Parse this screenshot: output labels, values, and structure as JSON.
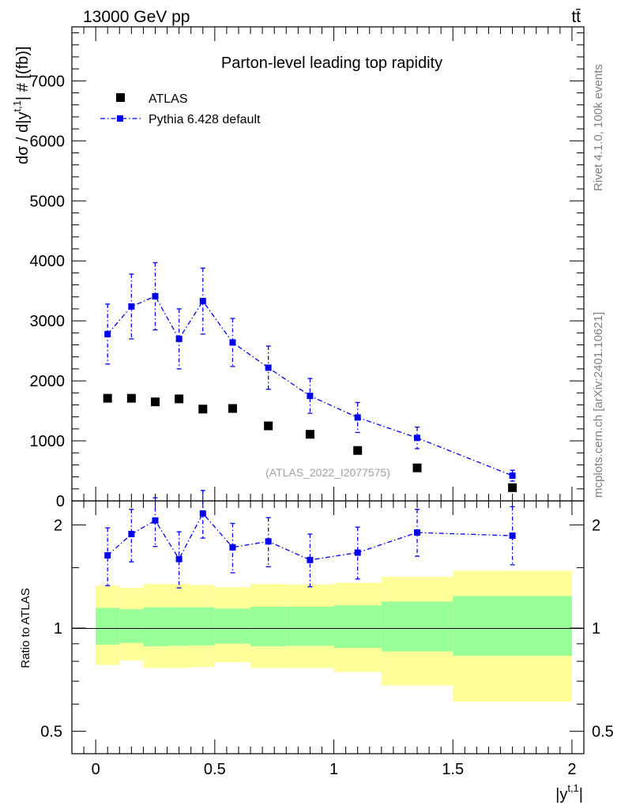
{
  "header": {
    "left": "13000 GeV pp",
    "right": "tt̄"
  },
  "side_labels": {
    "rivet": "Rivet 4.1.0,  100k events",
    "mcplots": "mcplots.cern.ch [arXiv:2401.10621]"
  },
  "chart_data": [
    {
      "type": "scatter",
      "title": "Parton-level leading top rapidity",
      "ylabel": "dσ / d|y",
      "ylabel_sup": "t,1",
      "ylabel_tail": "| # [(fb)]",
      "xlabel": "|y",
      "xlabel_sup": "t,1",
      "xlabel_tail": "|",
      "xlim": [
        -0.1,
        2.05
      ],
      "ylim": [
        0,
        7900
      ],
      "yticks": [
        0,
        1000,
        2000,
        3000,
        4000,
        5000,
        6000,
        7000
      ],
      "ytick_labels": [
        "0",
        "1000",
        "2000",
        "3000",
        "4000",
        "5000",
        "6000",
        "7000"
      ],
      "reference": "(ATLAS_2022_I2077575)",
      "legend": [
        {
          "label": "ATLAS",
          "color": "#000000",
          "marker": "square"
        },
        {
          "label": "Pythia 6.428 default",
          "color": "#0000ee",
          "marker": "square-dashdot"
        }
      ],
      "series": [
        {
          "name": "ATLAS",
          "color": "#000000",
          "x": [
            0.05,
            0.15,
            0.25,
            0.35,
            0.45,
            0.575,
            0.725,
            0.9,
            1.1,
            1.35,
            1.75
          ],
          "y": [
            1710,
            1710,
            1650,
            1700,
            1530,
            1540,
            1250,
            1110,
            840,
            550,
            220
          ]
        },
        {
          "name": "Pythia 6.428 default",
          "color": "#0000ee",
          "x": [
            0.05,
            0.15,
            0.25,
            0.35,
            0.45,
            0.575,
            0.725,
            0.9,
            1.1,
            1.35,
            1.75
          ],
          "y": [
            2780,
            3240,
            3410,
            2700,
            3330,
            2640,
            2220,
            1750,
            1390,
            1050,
            420
          ],
          "err": [
            500,
            540,
            560,
            500,
            550,
            400,
            360,
            290,
            250,
            180,
            90
          ]
        }
      ]
    },
    {
      "type": "scatter",
      "ylabel": "Ratio to ATLAS",
      "log_y": true,
      "ylim": [
        0.43,
        2.35
      ],
      "xticks": [
        0,
        0.5,
        1,
        1.5,
        2
      ],
      "xtick_labels": [
        "0",
        "0.5",
        "1",
        "1.5",
        "2"
      ],
      "yticks": [
        0.5,
        1,
        2
      ],
      "ytick_labels": [
        "0.5",
        "1",
        "2"
      ],
      "bin_edges": [
        0,
        0.1,
        0.2,
        0.3,
        0.4,
        0.5,
        0.65,
        0.8,
        1.0,
        1.2,
        1.5,
        2.0
      ],
      "bands": {
        "inner_color": "#99ff99",
        "outer_color": "#ffff99",
        "inner_lo": [
          0.895,
          0.905,
          0.885,
          0.888,
          0.89,
          0.9,
          0.885,
          0.888,
          0.875,
          0.855,
          0.83
        ],
        "inner_hi": [
          1.145,
          1.135,
          1.15,
          1.15,
          1.15,
          1.14,
          1.155,
          1.155,
          1.165,
          1.195,
          1.24
        ],
        "outer_lo": [
          0.78,
          0.805,
          0.765,
          0.765,
          0.77,
          0.795,
          0.765,
          0.765,
          0.745,
          0.68,
          0.61
        ],
        "outer_hi": [
          1.33,
          1.31,
          1.345,
          1.345,
          1.335,
          1.315,
          1.345,
          1.34,
          1.355,
          1.41,
          1.47
        ]
      },
      "series": [
        {
          "name": "Pythia 6.428 default",
          "color": "#0000ee",
          "x": [
            0.05,
            0.15,
            0.25,
            0.35,
            0.45,
            0.575,
            0.725,
            0.9,
            1.1,
            1.35,
            1.75
          ],
          "y": [
            1.63,
            1.88,
            2.06,
            1.59,
            2.16,
            1.72,
            1.79,
            1.58,
            1.66,
            1.9,
            1.86
          ],
          "err_lo": [
            0.3,
            0.32,
            0.33,
            0.28,
            0.33,
            0.27,
            0.28,
            0.26,
            0.27,
            0.28,
            0.33
          ],
          "err_hi": [
            0.33,
            0.34,
            0.34,
            0.32,
            0.36,
            0.3,
            0.31,
            0.3,
            0.31,
            0.32,
            0.4
          ]
        }
      ]
    }
  ]
}
